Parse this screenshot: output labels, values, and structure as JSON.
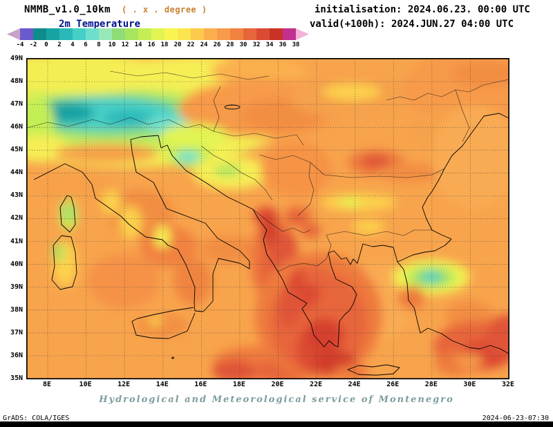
{
  "header": {
    "model": "NMMB_v1.0_10km",
    "degree_note": "( . x . degree )",
    "variable": "2m Temperature",
    "init_label": "initialisation: 2024.06.23. 00:00 UTC",
    "valid_label": "valid(+100h): 2024.JUN.27 04:00 UTC"
  },
  "colorbar": {
    "ticks": [
      "-4",
      "-2",
      "0",
      "2",
      "4",
      "6",
      "8",
      "10",
      "12",
      "14",
      "16",
      "18",
      "20",
      "22",
      "24",
      "26",
      "28",
      "30",
      "32",
      "34",
      "36",
      "38"
    ],
    "colors": [
      "#c8a2c8",
      "#6a5acd",
      "#0e8c8c",
      "#18a3a3",
      "#2ab8b8",
      "#46cfc6",
      "#6fdfcd",
      "#98e8b8",
      "#8fdc78",
      "#a8e55e",
      "#c4ee54",
      "#e2f452",
      "#f8f551",
      "#fce44e",
      "#fccb4b",
      "#fbb04d",
      "#f79a49",
      "#f1823f",
      "#e7653a",
      "#dc4a31",
      "#c93226",
      "#c2308f",
      "#f3b3d8"
    ]
  },
  "map": {
    "lat_labels": [
      "49N",
      "48N",
      "47N",
      "46N",
      "45N",
      "44N",
      "43N",
      "42N",
      "41N",
      "40N",
      "39N",
      "38N",
      "37N",
      "36N",
      "35N"
    ],
    "lon_labels": [
      "8E",
      "10E",
      "12E",
      "14E",
      "16E",
      "18E",
      "20E",
      "22E",
      "24E",
      "26E",
      "28E",
      "30E",
      "32E"
    ]
  },
  "footer": {
    "service": "Hydrological and Meteorological service of Montenegro",
    "grads": "GrADS: COLA/IGES",
    "timestamp": "2024-06-23-07:30"
  },
  "chart_data": {
    "type": "heatmap",
    "title": "2m Temperature",
    "model": "NMMB_v1.0_10km",
    "initialisation": "2024.06.23. 00:00 UTC",
    "valid": "(+100h) 2024.JUN.27 04:00 UTC",
    "levels": [
      -4,
      -2,
      0,
      2,
      4,
      6,
      8,
      10,
      12,
      14,
      16,
      18,
      20,
      22,
      24,
      26,
      28,
      30,
      32,
      34,
      36,
      38
    ],
    "palette": [
      "#c8a2c8",
      "#6a5acd",
      "#0e8c8c",
      "#18a3a3",
      "#2ab8b8",
      "#46cfc6",
      "#6fdfcd",
      "#98e8b8",
      "#8fdc78",
      "#a8e55e",
      "#c4ee54",
      "#e2f452",
      "#f8f551",
      "#fce44e",
      "#fccb4b",
      "#fbb04d",
      "#f79a49",
      "#f1823f",
      "#e7653a",
      "#dc4a31",
      "#c93226",
      "#c2308f",
      "#f3b3d8"
    ],
    "lat_range": [
      "35N",
      "49N"
    ],
    "lon_range": [
      "8E",
      "32E"
    ],
    "legend_position": "top"
  }
}
